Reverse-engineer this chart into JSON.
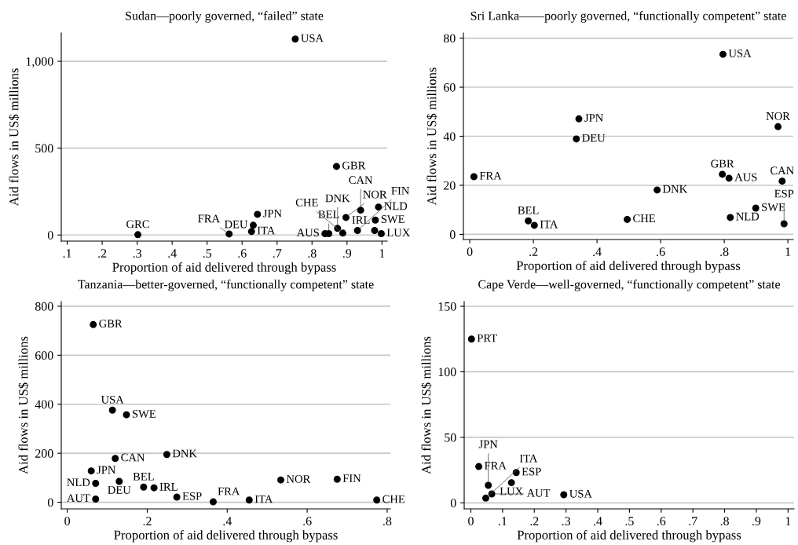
{
  "chart_data": [
    {
      "type": "scatter",
      "title": "Sudan—poorly governed, “failed” state",
      "xlabel": "Proportion of aid delivered through bypass",
      "ylabel": "Aid flows in US$ millions",
      "color": "#000000",
      "marker": "circle",
      "grid": "y",
      "x": [
        0.752,
        0.87,
        0.644,
        0.632,
        0.627,
        0.563,
        0.302,
        0.837,
        0.848,
        0.873,
        0.897,
        0.939,
        0.99,
        0.981,
        0.888,
        0.93,
        0.979,
        0.998
      ],
      "values": [
        1128,
        395,
        119,
        56,
        20,
        6,
        2,
        8,
        8,
        38,
        101,
        143,
        161,
        86,
        11,
        26,
        26,
        8
      ],
      "annotations": [
        {
          "text": "USA",
          "x": 0.752,
          "y": 1128
        },
        {
          "text": "GBR",
          "x": 0.87,
          "y": 395
        },
        {
          "text": "JPN",
          "x": 0.644,
          "y": 119
        },
        {
          "text": "DEU",
          "x": 0.632,
          "y": 56
        },
        {
          "text": "ITA",
          "x": 0.627,
          "y": 20
        },
        {
          "text": "FRA",
          "x": 0.563,
          "y": 6
        },
        {
          "text": "GRC",
          "x": 0.302,
          "y": 2
        },
        {
          "text": "AUS",
          "x": 0.837,
          "y": 8
        },
        {
          "text": "BEL",
          "x": 0.848,
          "y": 8
        },
        {
          "text": "DNK",
          "x": 0.873,
          "y": 38
        },
        {
          "text": "NOR",
          "x": 0.897,
          "y": 101
        },
        {
          "text": "CAN",
          "x": 0.939,
          "y": 143
        },
        {
          "text": "NLD",
          "x": 0.99,
          "y": 161
        },
        {
          "text": "SWE",
          "x": 0.981,
          "y": 86
        },
        {
          "text": "CHE",
          "x": 0.888,
          "y": 11
        },
        {
          "text": "FIN",
          "x": 0.93,
          "y": 26
        },
        {
          "text": "IRL",
          "x": 0.979,
          "y": 26
        },
        {
          "text": "LUX",
          "x": 0.998,
          "y": 8
        }
      ],
      "xlim": [
        0.083,
        1.015
      ],
      "ylim": [
        -35,
        1163
      ],
      "xticks": [
        {
          "value": 0.1,
          "label": ".1"
        },
        {
          "value": 0.2,
          "label": ".2"
        },
        {
          "value": 0.3,
          "label": ".3"
        },
        {
          "value": 0.4,
          "label": ".4"
        },
        {
          "value": 0.5,
          "label": ".5"
        },
        {
          "value": 0.6,
          "label": ".6"
        },
        {
          "value": 0.7,
          "label": ".7"
        },
        {
          "value": 0.8,
          "label": ".8"
        },
        {
          "value": 0.9,
          "label": ".9"
        },
        1
      ],
      "yticks": [
        0,
        500,
        {
          "value": 1000,
          "label": "1,000"
        }
      ]
    },
    {
      "type": "scatter",
      "title": "Sri Lanka——poorly governed, “functionally competent” state",
      "xlabel": "Proportion of aid delivered through bypass",
      "ylabel": "Aid flows in US$ millions",
      "color": "#000000",
      "marker": "circle",
      "grid": "y",
      "x": [
        0.796,
        0.343,
        0.335,
        0.969,
        0.013,
        0.794,
        0.815,
        0.982,
        0.589,
        0.899,
        0.819,
        0.495,
        0.184,
        0.203,
        0.988
      ],
      "values": [
        73.4,
        47.1,
        38.9,
        43.9,
        23.5,
        24.5,
        22.9,
        21.7,
        18.1,
        10.7,
        6.9,
        6.1,
        5.5,
        3.7,
        4.3
      ],
      "annotations": [
        {
          "text": "USA",
          "x": 0.796,
          "y": 73.4
        },
        {
          "text": "JPN",
          "x": 0.343,
          "y": 47.1
        },
        {
          "text": "DEU",
          "x": 0.335,
          "y": 38.9
        },
        {
          "text": "NOR",
          "x": 0.969,
          "y": 43.9
        },
        {
          "text": "FRA",
          "x": 0.013,
          "y": 23.5
        },
        {
          "text": "GBR",
          "x": 0.794,
          "y": 24.5
        },
        {
          "text": "AUS",
          "x": 0.815,
          "y": 22.9
        },
        {
          "text": "CAN",
          "x": 0.982,
          "y": 21.7
        },
        {
          "text": "DNK",
          "x": 0.589,
          "y": 18.1
        },
        {
          "text": "SWE",
          "x": 0.899,
          "y": 10.7
        },
        {
          "text": "NLD",
          "x": 0.819,
          "y": 6.9
        },
        {
          "text": "CHE",
          "x": 0.495,
          "y": 6.1
        },
        {
          "text": "BEL",
          "x": 0.184,
          "y": 5.5
        },
        {
          "text": "ITA",
          "x": 0.203,
          "y": 3.7
        },
        {
          "text": "ESP",
          "x": 0.988,
          "y": 4.3
        }
      ],
      "xlim": [
        -0.02,
        1.017
      ],
      "ylim": [
        -2.1,
        82.1
      ],
      "xticks": [
        0,
        {
          "value": 0.2,
          "label": ".2"
        },
        {
          "value": 0.4,
          "label": ".4"
        },
        {
          "value": 0.6,
          "label": ".6"
        },
        {
          "value": 0.8,
          "label": ".8"
        },
        1
      ],
      "yticks": [
        0,
        20,
        40,
        60,
        80
      ]
    },
    {
      "type": "scatter",
      "title": "Tanzania—better-governed, “functionally competent” state",
      "xlabel": "Proportion of aid delivered through bypass",
      "ylabel": "Aid flows in US$ millions",
      "color": "#000000",
      "marker": "circle",
      "grid": "y",
      "x": [
        0.065,
        0.113,
        0.148,
        0.12,
        0.249,
        0.06,
        0.071,
        0.13,
        0.071,
        0.191,
        0.217,
        0.274,
        0.365,
        0.455,
        0.534,
        0.675,
        0.774
      ],
      "values": [
        725,
        376,
        357,
        179,
        195,
        128,
        77,
        85,
        13,
        62,
        59,
        21,
        2,
        9,
        91,
        94,
        9
      ],
      "annotations": [
        {
          "text": "GBR",
          "x": 0.065,
          "y": 725
        },
        {
          "text": "USA",
          "x": 0.113,
          "y": 376
        },
        {
          "text": "SWE",
          "x": 0.148,
          "y": 357
        },
        {
          "text": "CAN",
          "x": 0.12,
          "y": 179
        },
        {
          "text": "DNK",
          "x": 0.249,
          "y": 195
        },
        {
          "text": "JPN",
          "x": 0.06,
          "y": 128
        },
        {
          "text": "NLD",
          "x": 0.071,
          "y": 77
        },
        {
          "text": "DEU",
          "x": 0.13,
          "y": 85
        },
        {
          "text": "AUT",
          "x": 0.071,
          "y": 13
        },
        {
          "text": "BEL",
          "x": 0.191,
          "y": 62
        },
        {
          "text": "IRL",
          "x": 0.217,
          "y": 59
        },
        {
          "text": "ESP",
          "x": 0.274,
          "y": 21
        },
        {
          "text": "FRA",
          "x": 0.365,
          "y": 2
        },
        {
          "text": "ITA",
          "x": 0.455,
          "y": 9
        },
        {
          "text": "NOR",
          "x": 0.534,
          "y": 91
        },
        {
          "text": "FIN",
          "x": 0.675,
          "y": 94
        },
        {
          "text": "CHE",
          "x": 0.774,
          "y": 9
        }
      ],
      "xlim": [
        -0.015,
        0.808
      ],
      "ylim": [
        -27,
        819
      ],
      "xticks": [
        0,
        {
          "value": 0.2,
          "label": ".2"
        },
        {
          "value": 0.4,
          "label": ".4"
        },
        {
          "value": 0.6,
          "label": ".6"
        },
        {
          "value": 0.8,
          "label": ".8"
        }
      ],
      "yticks": [
        0,
        200,
        400,
        600,
        800
      ]
    },
    {
      "type": "scatter",
      "title": "Cape Verde—well-governed, “functionally competent” state",
      "xlabel": "Proportion of aid delivered through bypass",
      "ylabel": "Aid flows in US$ millions",
      "color": "#000000",
      "marker": "circle",
      "grid": "y",
      "x": [
        0.002,
        0.025,
        0.143,
        0.128,
        0.055,
        0.066,
        0.047,
        0.293
      ],
      "values": [
        125,
        27.7,
        23.1,
        15.4,
        13.4,
        6.8,
        3.6,
        6.2
      ],
      "annotations": [
        {
          "text": "PRT",
          "x": 0.002,
          "y": 125
        },
        {
          "text": "FRA",
          "x": 0.025,
          "y": 27.7
        },
        {
          "text": "ESP",
          "x": 0.143,
          "y": 23.1
        },
        {
          "text": "LUX",
          "x": 0.128,
          "y": 15.4
        },
        {
          "text": "JPN",
          "x": 0.055,
          "y": 13.4
        },
        {
          "text": "AUT",
          "x": 0.066,
          "y": 6.8
        },
        {
          "text": "ITA",
          "x": 0.047,
          "y": 3.6
        },
        {
          "text": "USA",
          "x": 0.293,
          "y": 6.2
        }
      ],
      "xlim": [
        -0.021,
        1.019
      ],
      "ylim": [
        -4.6,
        153.6
      ],
      "xticks": [
        0,
        {
          "value": 0.1,
          "label": ".1"
        },
        {
          "value": 0.2,
          "label": ".2"
        },
        {
          "value": 0.3,
          "label": ".3"
        },
        {
          "value": 0.4,
          "label": ".4"
        },
        {
          "value": 0.5,
          "label": ".5"
        },
        {
          "value": 0.6,
          "label": ".6"
        },
        {
          "value": 0.7,
          "label": ".7"
        },
        {
          "value": 0.8,
          "label": ".8"
        },
        {
          "value": 0.9,
          "label": ".9"
        },
        1
      ],
      "yticks": [
        0,
        50,
        100,
        150
      ]
    }
  ]
}
